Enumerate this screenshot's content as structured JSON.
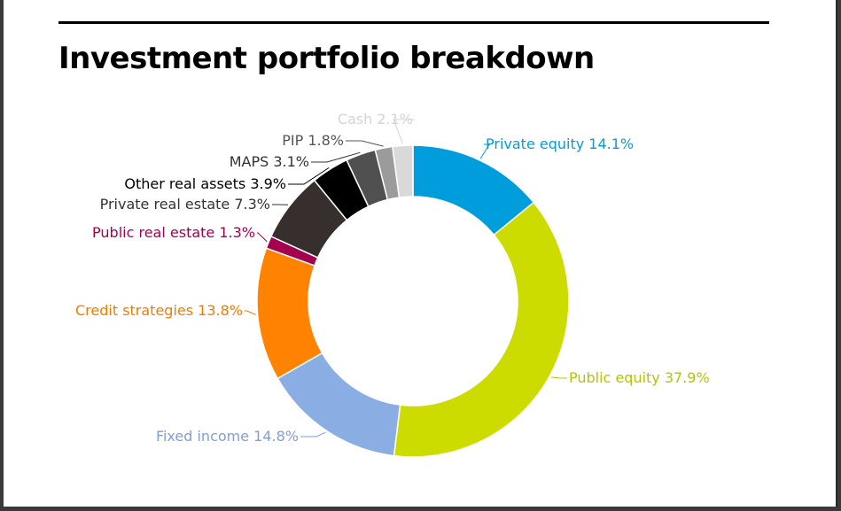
{
  "title": "Investment portfolio breakdown",
  "chart_data": {
    "type": "pie",
    "style": "donut",
    "title": "Investment portfolio breakdown",
    "unit": "%",
    "slices": [
      {
        "label": "Private equity",
        "value": 14.1,
        "display": "Private equity 14.1%",
        "color": "#009ddc"
      },
      {
        "label": "Public equity",
        "value": 37.9,
        "display": "Public equity 37.9%",
        "color": "#cddc00"
      },
      {
        "label": "Fixed income",
        "value": 14.8,
        "display": "Fixed income 14.8%",
        "color": "#8aaee4"
      },
      {
        "label": "Credit strategies",
        "value": 13.8,
        "display": "Credit strategies 13.8%",
        "color": "#ff8200"
      },
      {
        "label": "Public real estate",
        "value": 1.3,
        "display": "Public real estate 1.3%",
        "color": "#a50050"
      },
      {
        "label": "Private real estate",
        "value": 7.3,
        "display": "Private real estate 7.3%",
        "color": "#362f2d"
      },
      {
        "label": "Other real assets",
        "value": 3.9,
        "display": "Other real assets 3.9%",
        "color": "#000000"
      },
      {
        "label": "MAPS",
        "value": 3.1,
        "display": "MAPS 3.1%",
        "color": "#505050"
      },
      {
        "label": "PIP",
        "value": 1.8,
        "display": "PIP 1.8%",
        "color": "#9b9b9b"
      },
      {
        "label": "Cash",
        "value": 2.1,
        "display": "Cash 2.1%",
        "color": "#d9d9d9"
      }
    ],
    "label_colors": {
      "Private equity": "#009ddc",
      "Public equity": "#b5c400",
      "Fixed income": "#7f9fd6",
      "Credit strategies": "#f07d00",
      "Public real estate": "#a50050",
      "Private real estate": "#333333",
      "Other real assets": "#000000",
      "MAPS": "#333333",
      "PIP": "#555555",
      "Cash": "#d4d4d4"
    },
    "legend": "none"
  }
}
